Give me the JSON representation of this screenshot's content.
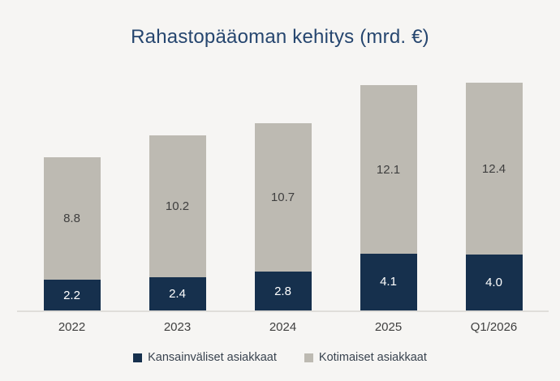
{
  "colors": {
    "background": "#F6F5F3",
    "title": "#26466F",
    "axis_line": "#E0DEDA",
    "axis_label": "#3F3F3F",
    "legend_text": "#39434F"
  },
  "chart_data": {
    "type": "bar",
    "stacked": true,
    "title": "Rahastopääoman kehitys (mrd. €)",
    "categories": [
      "2022",
      "2023",
      "2024",
      "2025",
      "Q1/2026"
    ],
    "series": [
      {
        "name": "Kansainväliset asiakkaat",
        "color": "#16304D",
        "label_color": "#FFFFFF",
        "values": [
          2.2,
          2.4,
          2.8,
          4.1,
          4.0
        ]
      },
      {
        "name": "Kotimaiset asiakkaat",
        "color": "#BDBAB2",
        "label_color": "#3F3F3F",
        "values": [
          8.8,
          10.2,
          10.7,
          12.1,
          12.4
        ]
      }
    ],
    "ylim": [
      0,
      17.5
    ],
    "grid": false,
    "legend_position": "bottom",
    "value_labels": true,
    "decimals": 1
  }
}
